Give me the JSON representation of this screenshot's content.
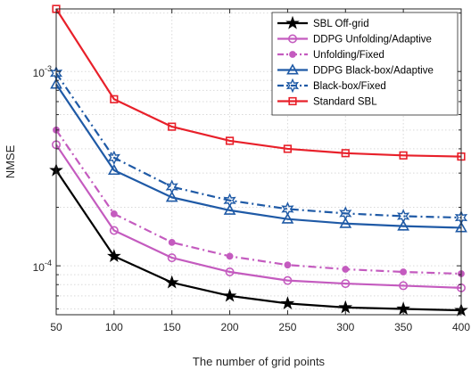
{
  "chart_data": {
    "type": "line",
    "title": "",
    "xlabel": "The number of grid points",
    "ylabel": "NMSE",
    "yscale": "log",
    "xlim": [
      50,
      400
    ],
    "ylim": [
      5.6e-05,
      0.0021
    ],
    "grid": true,
    "legend_position": "top-right",
    "x": [
      50,
      100,
      150,
      200,
      250,
      300,
      350,
      400
    ],
    "x_tick_labels": [
      "50",
      "100",
      "150",
      "200",
      "250",
      "300",
      "350",
      "400"
    ],
    "y_ticks": [
      {
        "value": 0.001,
        "base": "10",
        "exp": "-3"
      },
      {
        "value": 0.0001,
        "base": "10",
        "exp": "-4"
      }
    ],
    "series": [
      {
        "name": "SBL Off-grid",
        "color": "#000000",
        "line": "solid",
        "marker": "star",
        "values": [
          0.00031,
          0.000112,
          8.2e-05,
          7e-05,
          6.4e-05,
          6.1e-05,
          6e-05,
          5.9e-05
        ]
      },
      {
        "name": "DDPG Unfolding/Adaptive",
        "color": "#c45bbf",
        "line": "solid",
        "marker": "circle",
        "values": [
          0.00042,
          0.000152,
          0.00011,
          9.3e-05,
          8.4e-05,
          8.1e-05,
          7.9e-05,
          7.7e-05
        ]
      },
      {
        "name": "Unfolding/Fixed",
        "color": "#c45bbf",
        "line": "dashdot",
        "marker": "dot",
        "values": [
          0.0005,
          0.000185,
          0.000132,
          0.000112,
          0.000101,
          9.6e-05,
          9.3e-05,
          9.1e-05
        ]
      },
      {
        "name": "DDPG Black-box/Adaptive",
        "color": "#1f5aa6",
        "line": "solid",
        "marker": "triangle",
        "values": [
          0.00086,
          0.00031,
          0.000225,
          0.000193,
          0.000174,
          0.000165,
          0.00016,
          0.000157
        ]
      },
      {
        "name": "Black-box/Fixed",
        "color": "#1f5aa6",
        "line": "dashdot",
        "marker": "hexagram",
        "values": [
          0.00098,
          0.00036,
          0.000255,
          0.000217,
          0.000196,
          0.000186,
          0.00018,
          0.000177
        ]
      },
      {
        "name": "Standard SBL",
        "color": "#e8202a",
        "line": "solid",
        "marker": "square",
        "values": [
          0.0021,
          0.00072,
          0.00052,
          0.00044,
          0.0004,
          0.00038,
          0.00037,
          0.000365
        ]
      }
    ]
  }
}
